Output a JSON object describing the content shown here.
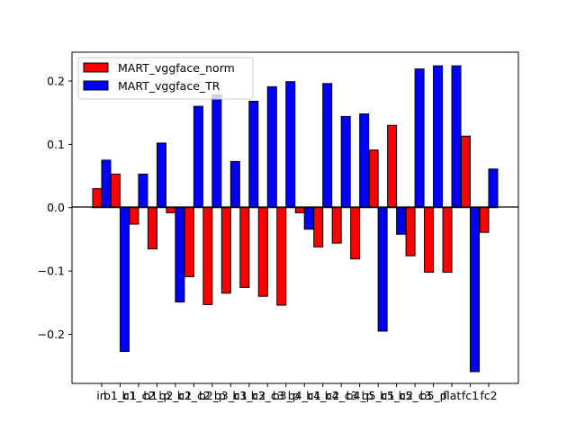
{
  "chart_data": {
    "type": "bar",
    "categories": [
      "in",
      "b1_c1",
      "b1_c2",
      "b1_p",
      "b2_c1",
      "b2_c2",
      "b2_p",
      "b3_c1",
      "b3_c2",
      "b3_c3",
      "b3_p",
      "b4_c1",
      "b4_c2",
      "b4_c3",
      "b4_p",
      "b5_c1",
      "b5_c2",
      "b5_c3",
      "b5_p",
      "flat",
      "fc1",
      "fc2"
    ],
    "series": [
      {
        "name": "MART_vggface_norm",
        "color": "#ff0000",
        "values": [
          0.03,
          0.053,
          -0.026,
          -0.065,
          -0.008,
          -0.109,
          -0.153,
          -0.135,
          -0.126,
          -0.14,
          -0.154,
          -0.008,
          -0.062,
          -0.056,
          -0.081,
          0.091,
          0.13,
          -0.076,
          -0.102,
          -0.102,
          0.113,
          -0.039
        ]
      },
      {
        "name": "MART_vggface_TR",
        "color": "#0000ff",
        "values": [
          0.075,
          -0.227,
          0.053,
          0.102,
          -0.149,
          0.16,
          0.178,
          0.073,
          0.168,
          0.191,
          0.199,
          -0.034,
          0.196,
          0.144,
          0.148,
          -0.195,
          -0.042,
          0.219,
          0.224,
          0.224,
          -0.259,
          0.061
        ]
      }
    ],
    "y_ticks": [
      {
        "value": -0.2,
        "label": "−0.2"
      },
      {
        "value": -0.1,
        "label": "−0.1"
      },
      {
        "value": 0.0,
        "label": "0.0"
      },
      {
        "value": 0.1,
        "label": "0.1"
      },
      {
        "value": 0.2,
        "label": "0.2"
      }
    ],
    "ylim": [
      -0.2775,
      0.2455
    ],
    "grid": false,
    "legend_position": "top-left",
    "title": "",
    "xlabel": "",
    "ylabel": ""
  }
}
